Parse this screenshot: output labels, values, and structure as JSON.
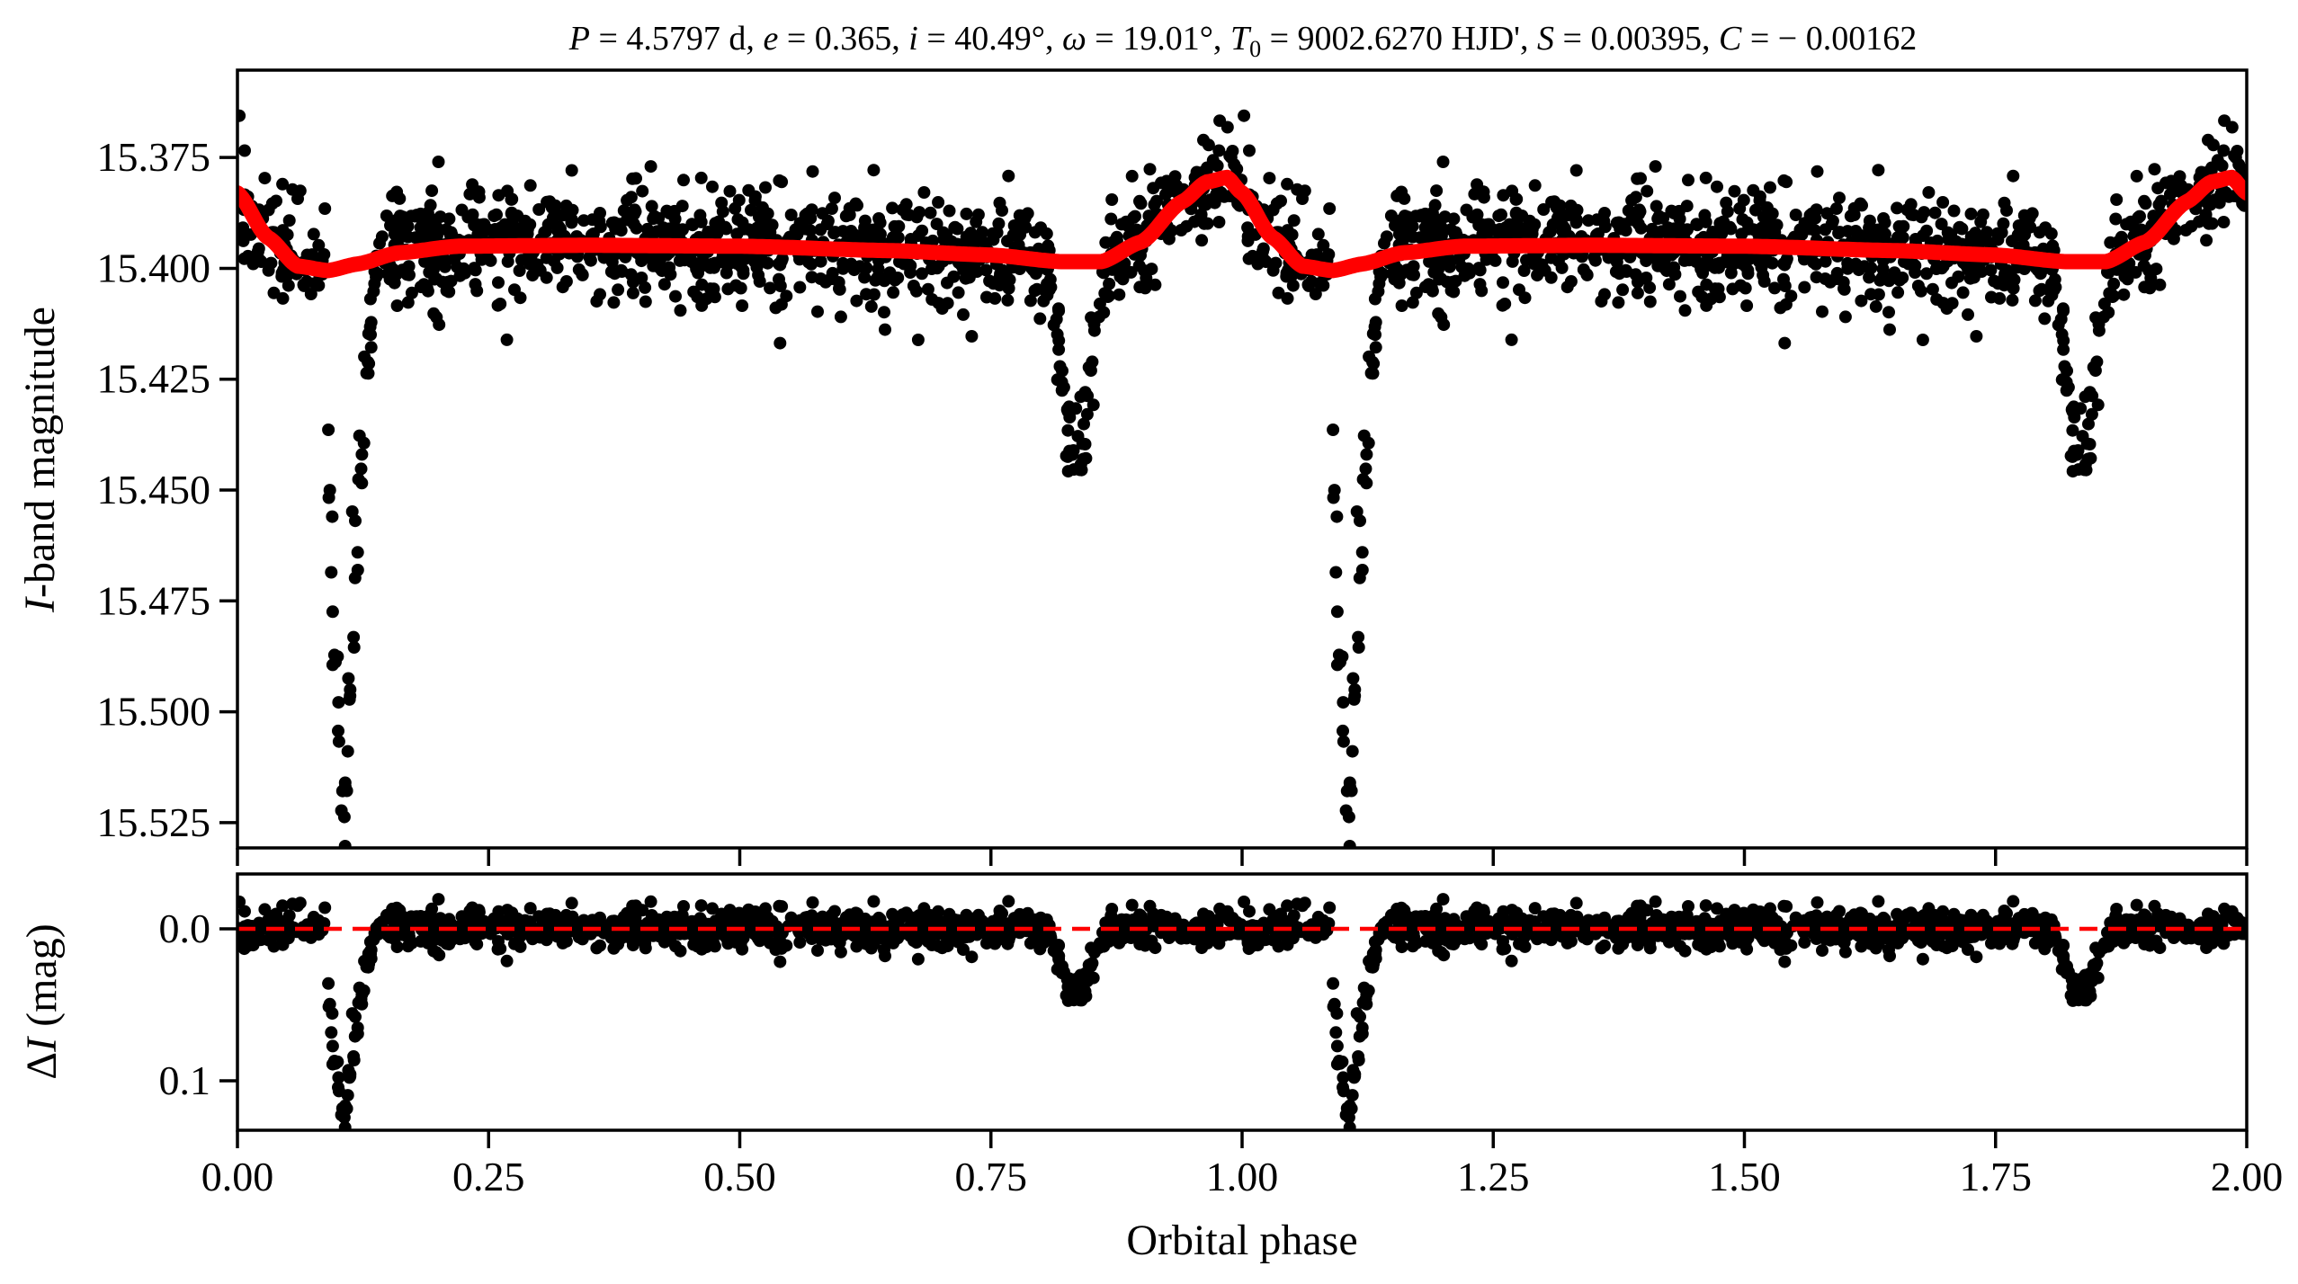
{
  "chart_data": [
    {
      "panel": "light-curve",
      "type": "scatter",
      "title": "P = 4.5797 d, e = 0.365, i = 40.49°, ω = 19.01°, T0 = 9002.6270 HJD', S = 0.00395, C = −0.00162",
      "title_parts": {
        "P_sym": "P",
        "P_val": " = 4.5797 d, ",
        "e_sym": "e",
        "e_val": " = 0.365, ",
        "i_sym": "i",
        "i_val": " = 40.49°, ",
        "w_sym": "ω",
        "w_val": " = 19.01°, ",
        "T_sym": "T",
        "T_sub": "0",
        "T_val": " = 9002.6270 HJD', ",
        "S_sym": "S",
        "S_val": " = 0.00395, ",
        "C_sym": "C",
        "C_val": " = − 0.00162"
      },
      "ylabel_italic": "I",
      "ylabel_rest": "-band magnitude",
      "ylim": [
        15.5307,
        15.3553
      ],
      "yticks": [
        15.375,
        15.4,
        15.425,
        15.45,
        15.475,
        15.5,
        15.525
      ],
      "ytick_labels": [
        "15.375",
        "15.400",
        "15.425",
        "15.450",
        "15.475",
        "15.500",
        "15.525"
      ],
      "xlim": [
        0,
        2
      ],
      "xticks": [
        0,
        0.25,
        0.5,
        0.75,
        1.0,
        1.25,
        1.5,
        1.75,
        2.0
      ],
      "grid": false,
      "points": {
        "color": "#000000",
        "phase_folded": true,
        "n_per_cycle": 1150,
        "noise_sigma_mag": 0.006,
        "seed": 20240,
        "primary_eclipse": {
          "ingress_start": 0.088,
          "minimum_phase": 0.106,
          "egress_end": 0.142,
          "depth_mag": 0.125
        },
        "secondary_eclipse": {
          "minimum_phase": 0.835,
          "half_width": 0.03,
          "depth_mag": 0.05
        }
      },
      "model": {
        "color": "#ff0000",
        "phase": [
          0.0,
          0.03,
          0.06,
          0.09,
          0.12,
          0.16,
          0.22,
          0.35,
          0.5,
          0.65,
          0.75,
          0.82,
          0.86,
          0.9,
          0.94,
          0.965,
          0.985,
          1.0
        ],
        "mag": [
          15.383,
          15.393,
          15.3995,
          15.4005,
          15.399,
          15.3965,
          15.395,
          15.3948,
          15.395,
          15.396,
          15.397,
          15.3985,
          15.3985,
          15.394,
          15.385,
          15.3805,
          15.3795,
          15.383
        ]
      }
    },
    {
      "panel": "residuals",
      "type": "scatter",
      "ylabel_delta": "Δ",
      "ylabel_italic": "I",
      "ylabel_rest": " (mag)",
      "xlabel": "Orbital phase",
      "ylim": [
        0.1325,
        -0.0361
      ],
      "yticks": [
        0.0,
        0.1
      ],
      "ytick_labels": [
        "0.0",
        "0.1"
      ],
      "xlim": [
        0,
        2
      ],
      "xticks": [
        0,
        0.25,
        0.5,
        0.75,
        1.0,
        1.25,
        1.5,
        1.75,
        2.0
      ],
      "xtick_labels": [
        "0.00",
        "0.25",
        "0.50",
        "0.75",
        "1.00",
        "1.25",
        "1.50",
        "1.75",
        "2.00"
      ],
      "zero_line": {
        "value": 0.0,
        "color": "#ff0000",
        "style": "dashed"
      },
      "grid": false
    }
  ]
}
